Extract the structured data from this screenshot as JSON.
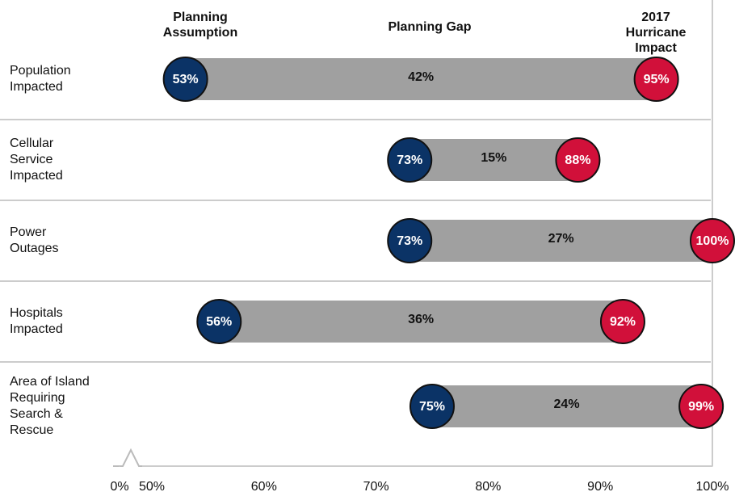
{
  "chart_data": {
    "type": "dumbbell",
    "categories": [
      "Population\nImpacted",
      "Cellular\nService\nImpacted",
      "Power\nOutages",
      "Hospitals\nImpacted",
      "Area of Island\nRequiring\nSearch &\nRescue"
    ],
    "series": [
      {
        "name": "Planning\nAssumption",
        "color": "#0b3366",
        "values": [
          53,
          73,
          73,
          56,
          75
        ],
        "value_labels": [
          "53%",
          "73%",
          "73%",
          "56%",
          "75%"
        ]
      },
      {
        "name": "Planning Gap",
        "color": "#a0a0a0",
        "values": [
          42,
          15,
          27,
          36,
          24
        ],
        "value_labels": [
          "42%",
          "15%",
          "27%",
          "36%",
          "24%"
        ]
      },
      {
        "name": "2017 Hurricane\nImpact",
        "color": "#d1103a",
        "values": [
          95,
          88,
          100,
          92,
          99
        ],
        "value_labels": [
          "95%",
          "88%",
          "100%",
          "92%",
          "99%"
        ]
      }
    ],
    "xlim": [
      0,
      100
    ],
    "axis_break": [
      0,
      50
    ],
    "xticks": [
      {
        "value": 0,
        "label": "0%"
      },
      {
        "value": 50,
        "label": "50%"
      },
      {
        "value": 60,
        "label": "60%"
      },
      {
        "value": 70,
        "label": "70%"
      },
      {
        "value": 80,
        "label": "80%"
      },
      {
        "value": 90,
        "label": "90%"
      },
      {
        "value": 100,
        "label": "100%"
      }
    ]
  }
}
